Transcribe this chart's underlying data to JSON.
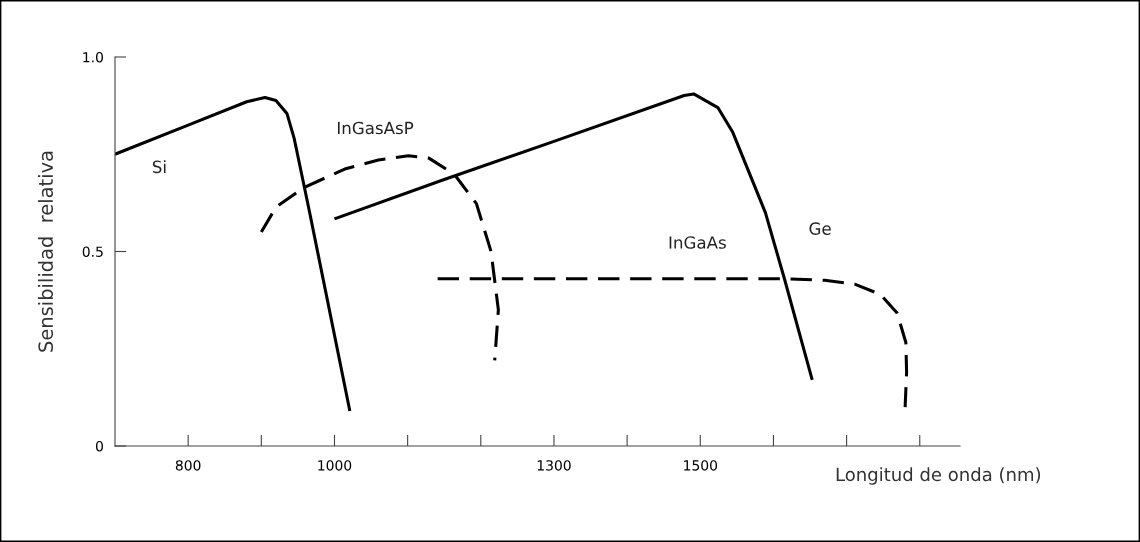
{
  "chart_data": {
    "type": "line",
    "xlabel": "Longitud de onda (nm)",
    "ylabel": "Sensibilidad  relativa",
    "xlim": [
      700,
      1855
    ],
    "ylim": [
      0,
      1.0
    ],
    "xticks": [
      {
        "value": 800,
        "label": "800"
      },
      {
        "value": 900,
        "label": null
      },
      {
        "value": 1000,
        "label": "1000"
      },
      {
        "value": 1100,
        "label": null
      },
      {
        "value": 1200,
        "label": null
      },
      {
        "value": 1300,
        "label": "1300"
      },
      {
        "value": 1400,
        "label": null
      },
      {
        "value": 1500,
        "label": "1500"
      },
      {
        "value": 1600,
        "label": null
      },
      {
        "value": 1700,
        "label": null
      },
      {
        "value": 1800,
        "label": null
      }
    ],
    "yticks": [
      {
        "value": 0,
        "label": "0"
      },
      {
        "value": 0.5,
        "label": "0.5"
      },
      {
        "value": 1.0,
        "label": "1.0"
      }
    ],
    "grid": false,
    "legend": false,
    "marker": "none",
    "series": [
      {
        "name": "Si",
        "color": "#000000",
        "line_style": "solid",
        "x": [
          700,
          800,
          880,
          905,
          920,
          935,
          945,
          965,
          1021
        ],
        "values": [
          0.75,
          0.825,
          0.885,
          0.896,
          0.888,
          0.855,
          0.79,
          0.61,
          0.09
        ]
      },
      {
        "name": "InGasAsP",
        "color": "#000000",
        "line_style": "dashed",
        "x": [
          900,
          920,
          959,
          1014,
          1060,
          1101,
          1129,
          1164,
          1194,
          1214,
          1224,
          1219
        ],
        "values": [
          0.55,
          0.614,
          0.665,
          0.712,
          0.735,
          0.746,
          0.74,
          0.698,
          0.623,
          0.5,
          0.35,
          0.22
        ]
      },
      {
        "name": "Ge",
        "color": "#000000",
        "line_style": "solid",
        "x": [
          1000,
          1150,
          1300,
          1478,
          1491,
          1524,
          1544,
          1589,
          1615,
          1653
        ],
        "values": [
          0.584,
          0.685,
          0.783,
          0.901,
          0.905,
          0.87,
          0.808,
          0.6,
          0.43,
          0.17
        ]
      },
      {
        "name": "InGaAs",
        "color": "#000000",
        "line_style": "dashed",
        "x": [
          1141,
          1400,
          1615,
          1670,
          1711,
          1746,
          1769,
          1781,
          1782,
          1780
        ],
        "values": [
          0.43,
          0.43,
          0.43,
          0.426,
          0.416,
          0.39,
          0.342,
          0.266,
          0.19,
          0.1
        ]
      }
    ]
  }
}
